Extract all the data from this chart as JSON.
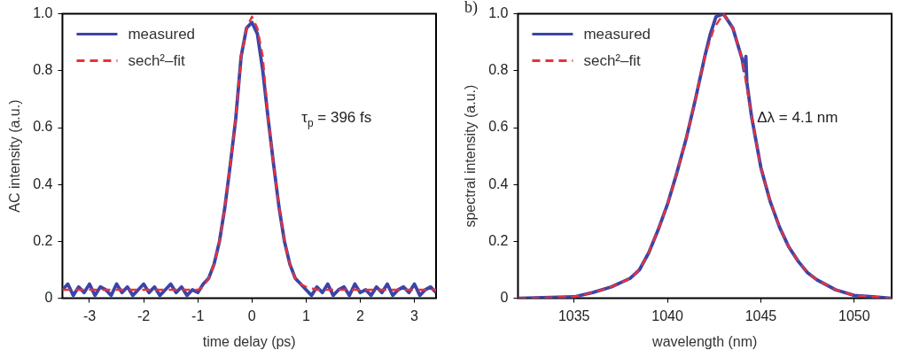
{
  "chart_data": [
    {
      "type": "line",
      "xlabel": "time delay (ps)",
      "ylabel": "AC intensity (a.u.)",
      "xlim": [
        -3.5,
        3.4
      ],
      "xticks": [
        -3,
        -2,
        -1,
        0,
        1,
        2,
        3
      ],
      "ylim": [
        0,
        1
      ],
      "yticks": [
        0,
        0.2,
        0.4,
        0.6,
        0.8,
        {
          "value": 1,
          "label": "1.0"
        }
      ],
      "grid": false,
      "legend": "top left",
      "marker": "none",
      "annotations": [
        "τ$_{p}$ = 396 fs"
      ],
      "series": [
        {
          "name": "measured",
          "color": "#3a45a8",
          "line_style": "solid",
          "x": [
            -3.5,
            -3.4,
            -3.3,
            -3.2,
            -3.1,
            -3.0,
            -2.9,
            -2.8,
            -2.7,
            -2.6,
            -2.5,
            -2.4,
            -2.3,
            -2.2,
            -2.1,
            -2.0,
            -1.9,
            -1.8,
            -1.7,
            -1.6,
            -1.5,
            -1.4,
            -1.3,
            -1.2,
            -1.1,
            -1.0,
            -0.9,
            -0.8,
            -0.7,
            -0.6,
            -0.5,
            -0.4,
            -0.3,
            -0.2,
            -0.1,
            0,
            0.1,
            0.2,
            0.3,
            0.4,
            0.5,
            0.6,
            0.7,
            0.8,
            0.9,
            1.0,
            1.1,
            1.2,
            1.3,
            1.4,
            1.5,
            1.6,
            1.7,
            1.8,
            1.9,
            2.0,
            2.1,
            2.2,
            2.3,
            2.4,
            2.5,
            2.6,
            2.7,
            2.8,
            2.9,
            3.0,
            3.1,
            3.2,
            3.3,
            3.4
          ],
          "values": [
            0.03,
            0.05,
            0.01,
            0.04,
            0.02,
            0.05,
            0.01,
            0.04,
            0.03,
            0.01,
            0.05,
            0.02,
            0.04,
            0.01,
            0.03,
            0.05,
            0.02,
            0.04,
            0.01,
            0.03,
            0.05,
            0.02,
            0.04,
            0.01,
            0.03,
            0.02,
            0.05,
            0.07,
            0.12,
            0.2,
            0.32,
            0.47,
            0.63,
            0.85,
            0.95,
            0.97,
            0.93,
            0.8,
            0.63,
            0.47,
            0.32,
            0.2,
            0.12,
            0.07,
            0.05,
            0.03,
            0.01,
            0.04,
            0.02,
            0.05,
            0.01,
            0.03,
            0.04,
            0.01,
            0.05,
            0.02,
            0.03,
            0.01,
            0.04,
            0.02,
            0.05,
            0.01,
            0.03,
            0.04,
            0.02,
            0.05,
            0.01,
            0.03,
            0.04,
            0.02
          ]
        },
        {
          "name": "sech²–fit",
          "color": "#e8323a",
          "line_style": "dashed",
          "x": [
            -3.5,
            -1.0,
            -0.9,
            -0.8,
            -0.7,
            -0.6,
            -0.5,
            -0.4,
            -0.3,
            -0.2,
            -0.1,
            0,
            0.1,
            0.2,
            0.3,
            0.4,
            0.5,
            0.6,
            0.7,
            0.8,
            0.9,
            1.0,
            1.2,
            3.4
          ],
          "values": [
            0.03,
            0.03,
            0.04,
            0.07,
            0.12,
            0.2,
            0.32,
            0.47,
            0.63,
            0.85,
            0.95,
            0.99,
            0.95,
            0.85,
            0.63,
            0.47,
            0.32,
            0.2,
            0.12,
            0.07,
            0.05,
            0.04,
            0.03,
            0.03
          ]
        }
      ]
    },
    {
      "type": "line",
      "title": "b)",
      "xlabel": "wavelength (nm)",
      "ylabel": "spectral intensity (a.u.)",
      "xlim": [
        1032,
        1052
      ],
      "xticks": [
        1035,
        1040,
        1045,
        1050
      ],
      "ylim": [
        0,
        1
      ],
      "yticks": [
        0,
        0.2,
        0.4,
        0.6,
        0.8,
        {
          "value": 1,
          "label": "1.0"
        }
      ],
      "grid": false,
      "legend": "top left",
      "marker": "none",
      "annotations": [
        "Δλ = 4.1 nm"
      ],
      "series": [
        {
          "name": "measured",
          "color": "#3a45a8",
          "line_style": "solid",
          "x": [
            1032,
            1035,
            1036,
            1037,
            1038,
            1038.5,
            1039,
            1039.5,
            1040,
            1040.5,
            1041,
            1041.5,
            1042,
            1042.3,
            1042.6,
            1043,
            1043.5,
            1044,
            1044.1,
            1044.2,
            1044.25,
            1044.5,
            1045,
            1045.5,
            1046,
            1046.5,
            1047,
            1047.5,
            1048,
            1049,
            1050,
            1051,
            1052
          ],
          "values": [
            0,
            0.005,
            0.02,
            0.04,
            0.07,
            0.1,
            0.16,
            0.24,
            0.33,
            0.44,
            0.56,
            0.7,
            0.85,
            0.93,
            0.99,
            1.0,
            0.95,
            0.84,
            0.8,
            0.85,
            0.76,
            0.64,
            0.46,
            0.34,
            0.25,
            0.18,
            0.13,
            0.09,
            0.065,
            0.03,
            0.01,
            0.005,
            0
          ]
        },
        {
          "name": "sech²–fit",
          "color": "#e8323a",
          "line_style": "dashed",
          "x": [
            1032,
            1035,
            1036,
            1037,
            1038,
            1038.5,
            1039,
            1039.5,
            1040,
            1040.5,
            1041,
            1041.5,
            1042,
            1042.5,
            1043,
            1043.5,
            1044,
            1044.5,
            1045,
            1045.5,
            1046,
            1046.5,
            1047,
            1047.5,
            1048,
            1049,
            1050,
            1051,
            1052
          ],
          "values": [
            0,
            0.005,
            0.02,
            0.04,
            0.07,
            0.1,
            0.16,
            0.24,
            0.33,
            0.44,
            0.56,
            0.7,
            0.85,
            0.95,
            1.0,
            0.95,
            0.84,
            0.64,
            0.46,
            0.34,
            0.25,
            0.18,
            0.13,
            0.09,
            0.065,
            0.03,
            0.01,
            0.005,
            0
          ]
        }
      ]
    }
  ]
}
